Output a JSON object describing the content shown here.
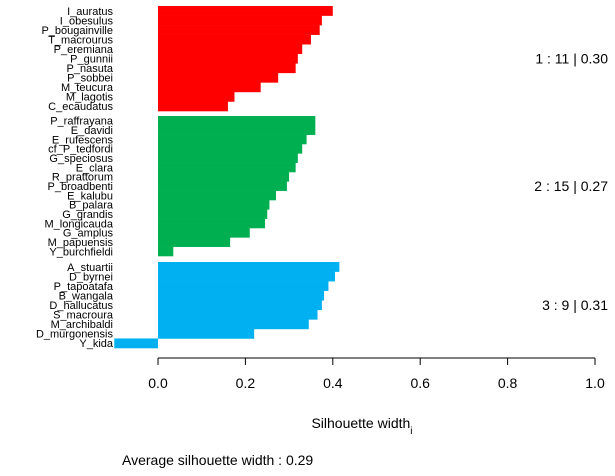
{
  "chart_data": {
    "type": "bar",
    "orientation": "horizontal",
    "xlabel": "Silhouette width",
    "xlabel_sub": "i",
    "xlim": [
      -0.1,
      1.0
    ],
    "xticks": [
      "0.0",
      "0.2",
      "0.4",
      "0.6",
      "0.8",
      "1.0"
    ],
    "xtick_values": [
      0.0,
      0.2,
      0.4,
      0.6,
      0.8,
      1.0
    ],
    "average_text": "Average silhouette width : 0.29",
    "clusters": [
      {
        "id": 1,
        "color": "#ff0000",
        "annotation": "1 :   11  |  0.30",
        "labels": [
          "I_auratus",
          "I_obesulus",
          "P_bougainville",
          "T_macrourus",
          "P_eremiana",
          "P_gunnii",
          "P_nasuta",
          "P_sobbei",
          "M_teucura",
          "M_lagotis",
          "C_ecaudatus"
        ],
        "values": [
          0.4,
          0.375,
          0.37,
          0.35,
          0.33,
          0.32,
          0.315,
          0.275,
          0.235,
          0.175,
          0.16
        ]
      },
      {
        "id": 2,
        "color": "#00b050",
        "annotation": "2 :   15  |  0.27",
        "labels": [
          "P_raffrayana",
          "E_davidi",
          "E_rufescens",
          "cf_P_tedfordi",
          "G_speciosus",
          "E_clara",
          "R_prattorum",
          "P_broadbenti",
          "E_kalubu",
          "B_palara",
          "G_grandis",
          "M_longicauda",
          "G_amplus",
          "M_papuensis",
          "Y_burchfieldi"
        ],
        "values": [
          0.36,
          0.36,
          0.34,
          0.33,
          0.32,
          0.315,
          0.3,
          0.295,
          0.27,
          0.255,
          0.25,
          0.245,
          0.21,
          0.165,
          0.035
        ]
      },
      {
        "id": 3,
        "color": "#00b0f0",
        "annotation": "3 :    9  |  0.31",
        "labels": [
          "A_stuartii",
          "D_byrnei",
          "P_tapoatafa",
          "B_wangala",
          "D_hallucatus",
          "S_macroura",
          "M_archibaldi",
          "D_murgonensis",
          "Y_kida"
        ],
        "values": [
          0.415,
          0.405,
          0.39,
          0.38,
          0.375,
          0.365,
          0.345,
          0.22,
          -0.1
        ]
      }
    ]
  }
}
